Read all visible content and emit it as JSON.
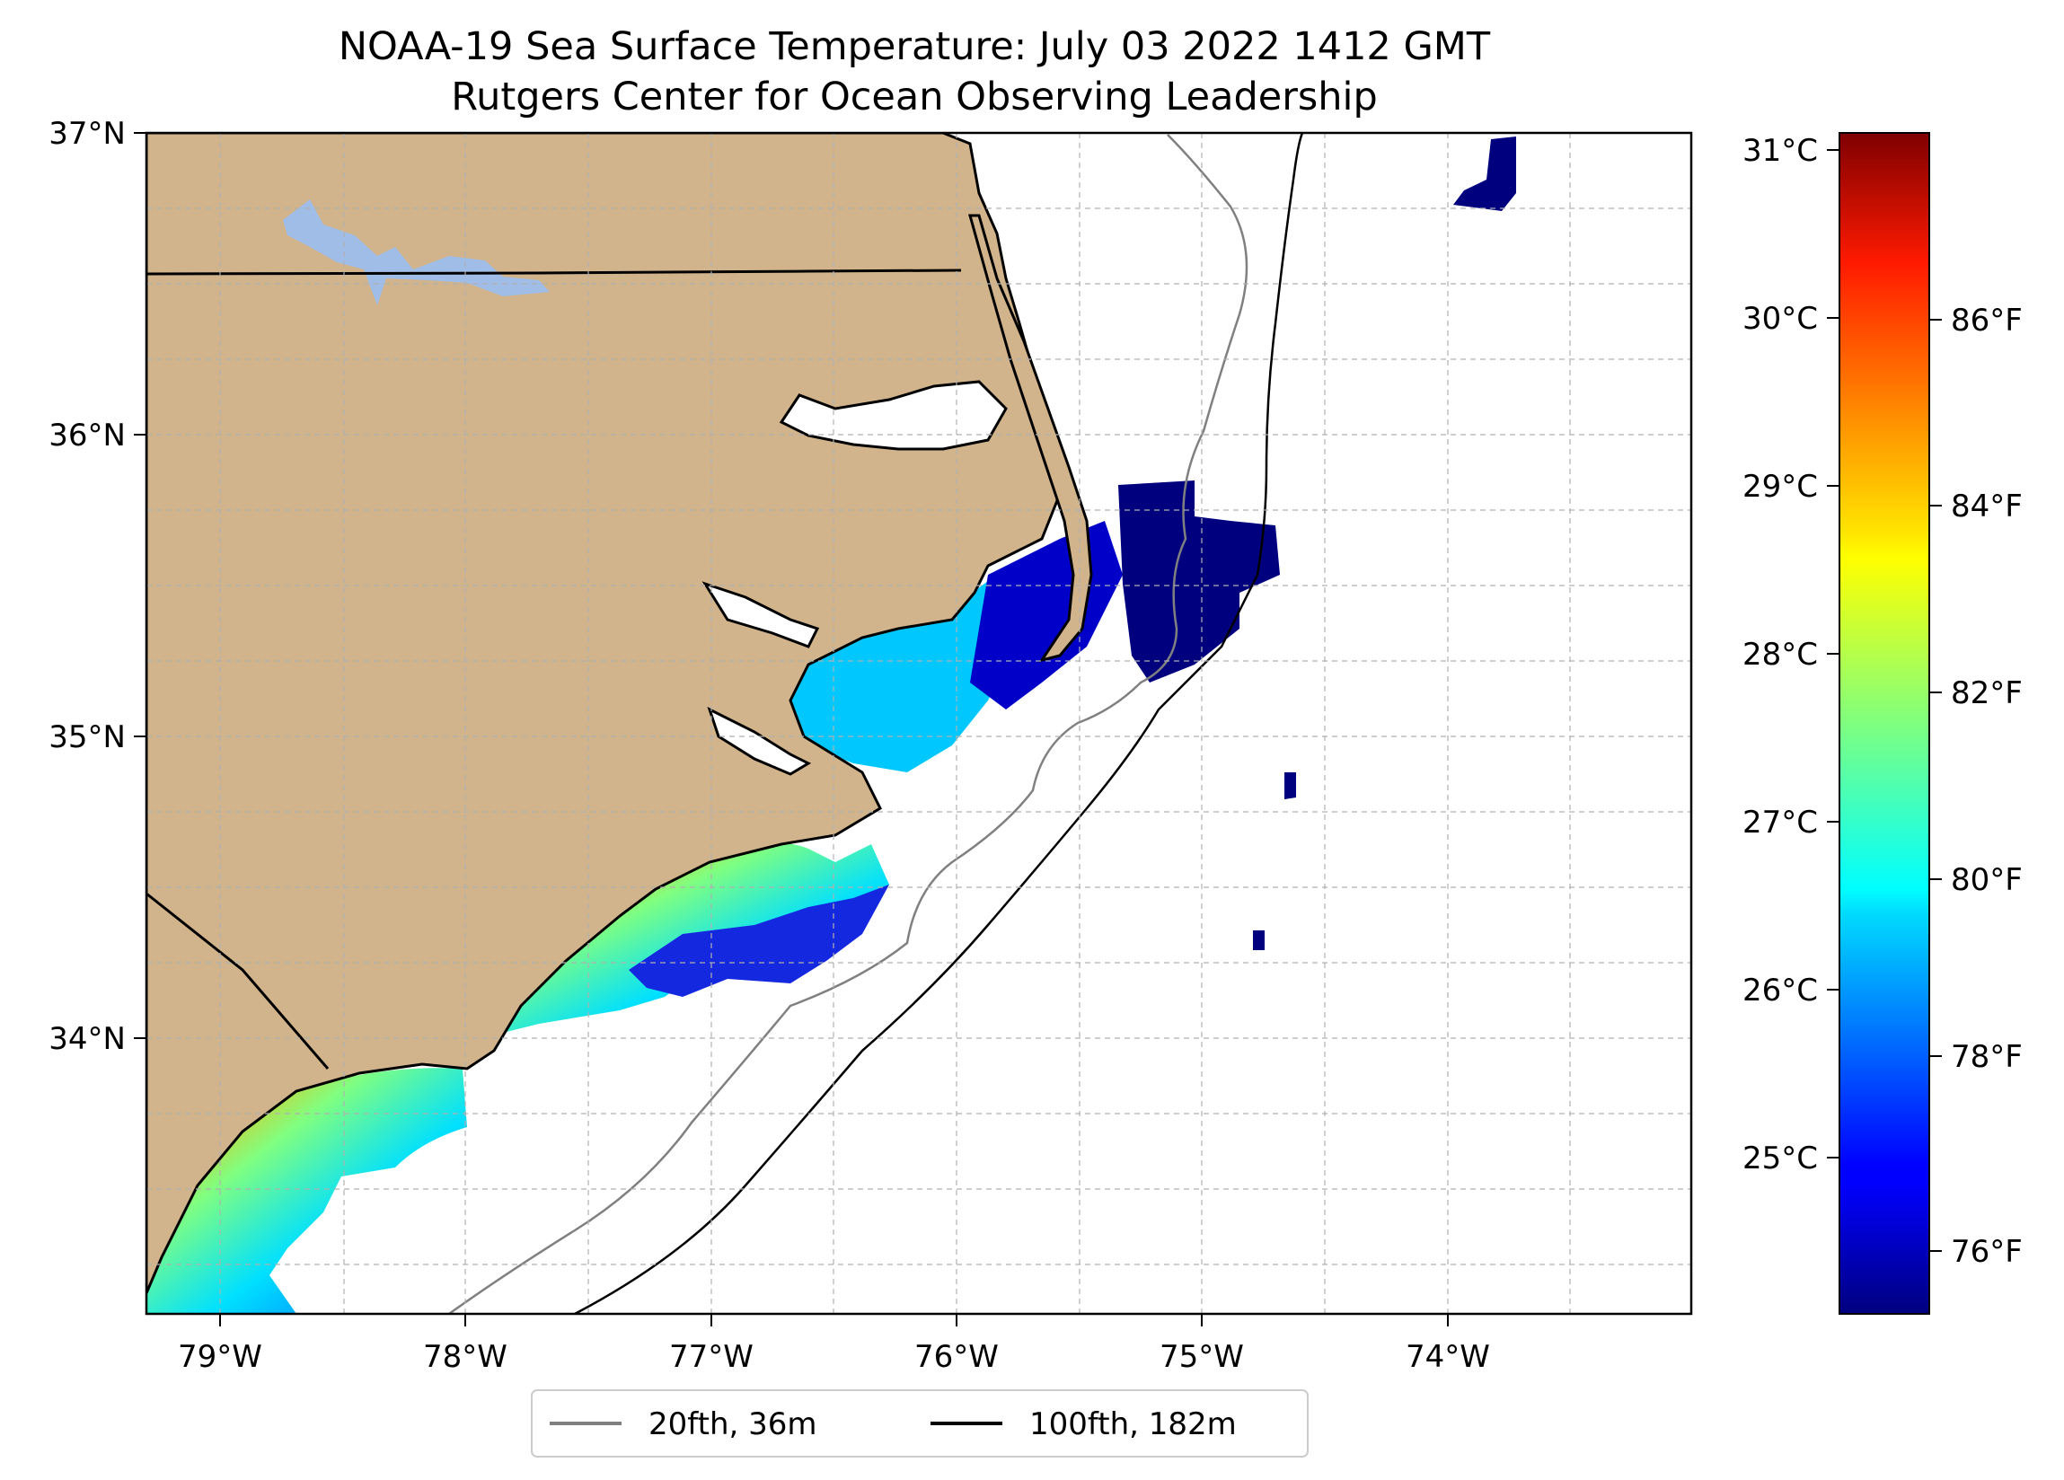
{
  "title": {
    "line1": "NOAA-19 Sea Surface Temperature: July 03 2022 1412 GMT",
    "line2": "Rutgers Center for Ocean Observing Leadership"
  },
  "map": {
    "lon_range": [
      -79.3,
      -73.0
    ],
    "lat_range": [
      33.1,
      37.0
    ],
    "lon_ticks": [
      "79°W",
      "78°W",
      "77°W",
      "76°W",
      "75°W",
      "74°W"
    ],
    "lat_ticks": [
      "37°N",
      "36°N",
      "35°N",
      "34°N"
    ],
    "gridlines": true,
    "land_color": "#d2b48c",
    "lake_color": "#9fbde6",
    "colormap": "jet"
  },
  "colorbar": {
    "celsius_ticks": [
      "31°C",
      "30°C",
      "29°C",
      "28°C",
      "27°C",
      "26°C",
      "25°C"
    ],
    "fahrenheit_ticks": [
      "86°F",
      "84°F",
      "82°F",
      "80°F",
      "78°F",
      "76°F"
    ],
    "range_c": [
      24.1,
      31.1
    ]
  },
  "legend": {
    "placement": "bottom-center",
    "items": [
      {
        "label": "20fth, 36m",
        "color": "#808080"
      },
      {
        "label": "100fth, 182m",
        "color": "#000000"
      }
    ]
  }
}
